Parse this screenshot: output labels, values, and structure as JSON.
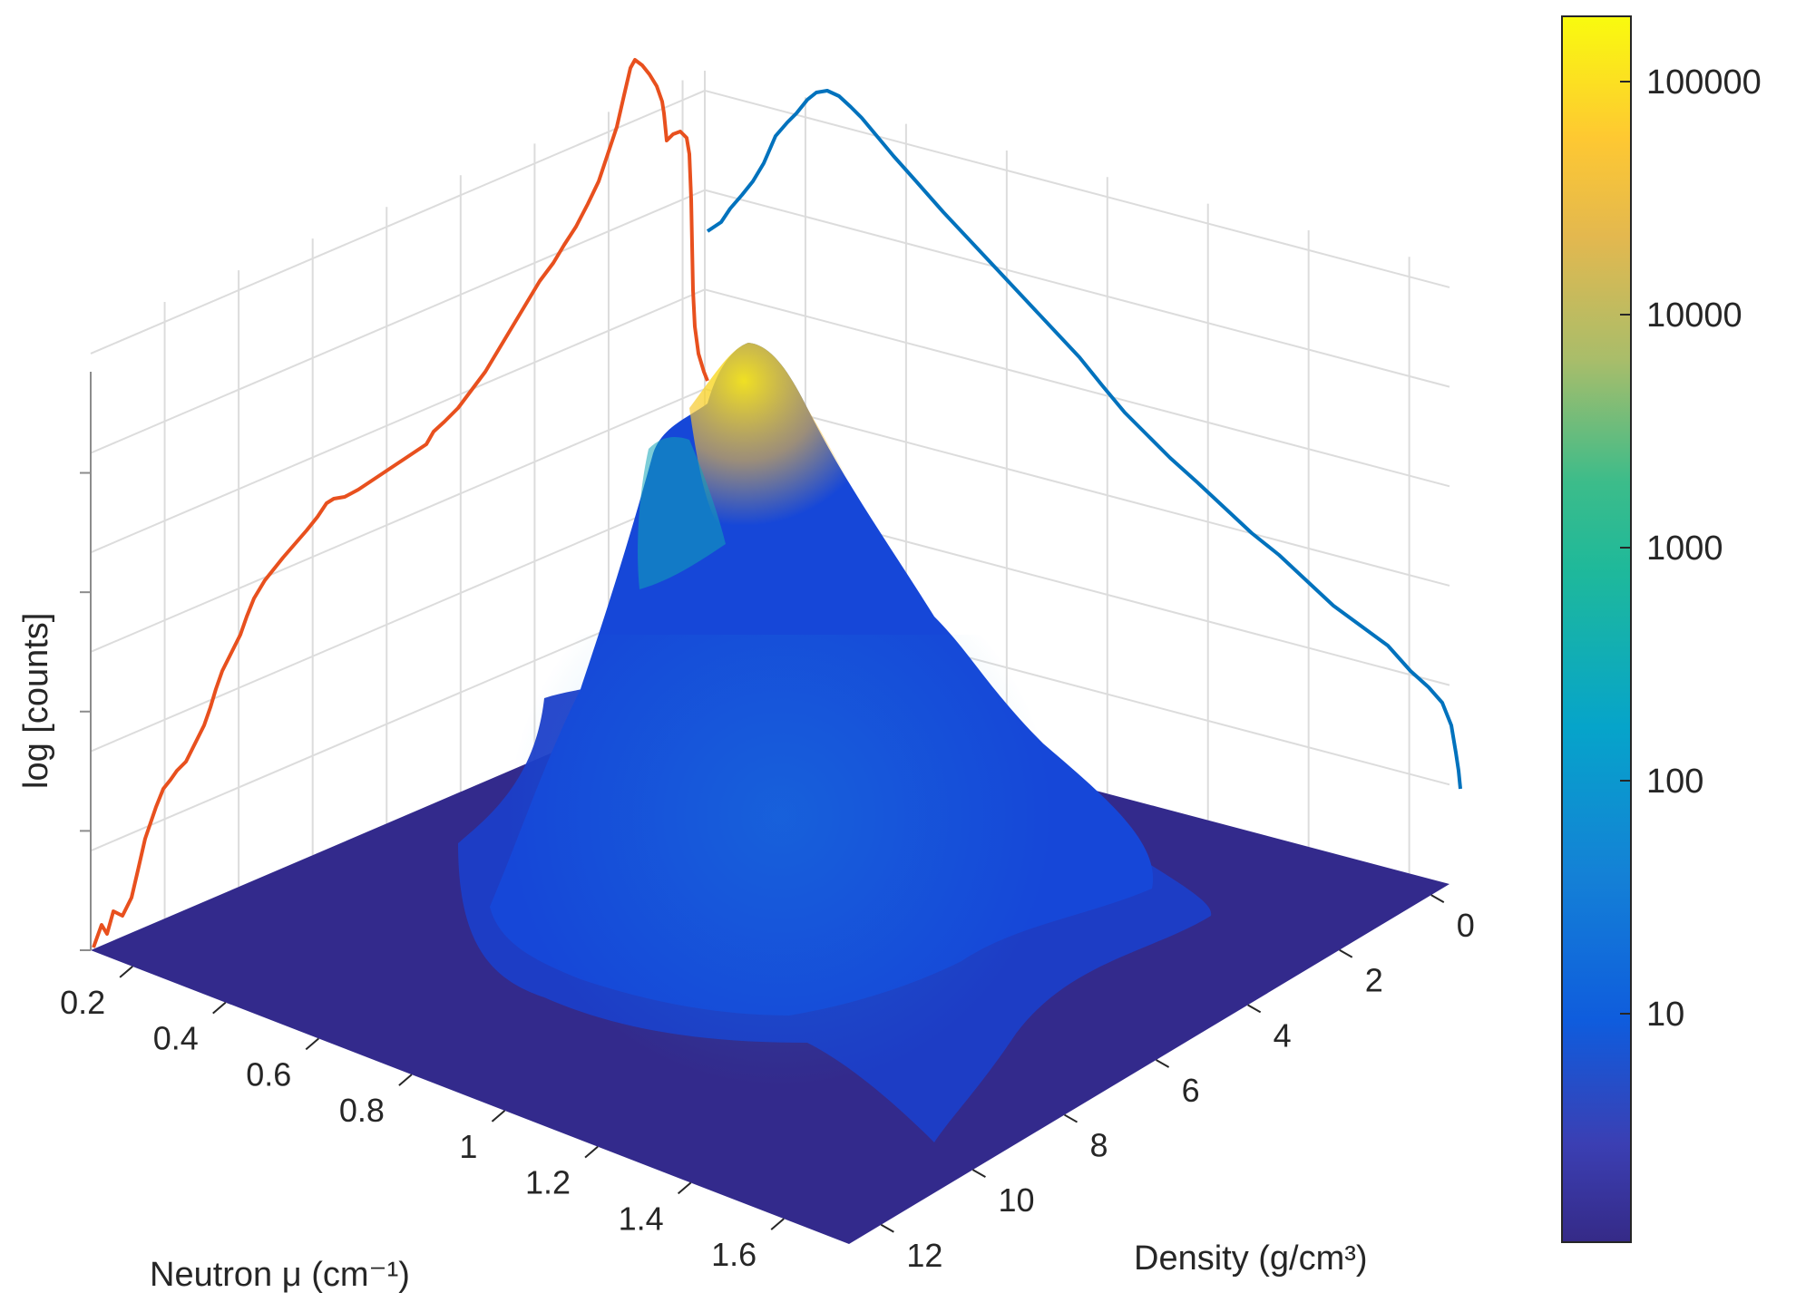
{
  "chart_data": {
    "type": "surface3d",
    "x_axis": {
      "label": "Neutron μ (cm⁻¹)",
      "ticks": [
        "0.2",
        "0.4",
        "0.6",
        "0.8",
        "1",
        "1.2",
        "1.4",
        "1.6"
      ]
    },
    "y_axis": {
      "label": "Density (g/cm³)",
      "ticks": [
        "0",
        "2",
        "4",
        "6",
        "8",
        "10",
        "12"
      ]
    },
    "z_axis": {
      "label": "log [counts]"
    },
    "colorbar": {
      "scale": "log",
      "ticks": [
        "100000",
        "10000",
        "1000",
        "100",
        "10"
      ],
      "colors": [
        "#352a87",
        "#0f5cdd",
        "#1481d6",
        "#06a4ca",
        "#2eb7a4",
        "#87bf77",
        "#d1bb59",
        "#fec832",
        "#f9fb0e"
      ]
    },
    "projections": [
      {
        "name": "neutron-mu-marginal",
        "color": "#e8501e"
      },
      {
        "name": "density-marginal",
        "color": "#0072bd"
      }
    ]
  }
}
